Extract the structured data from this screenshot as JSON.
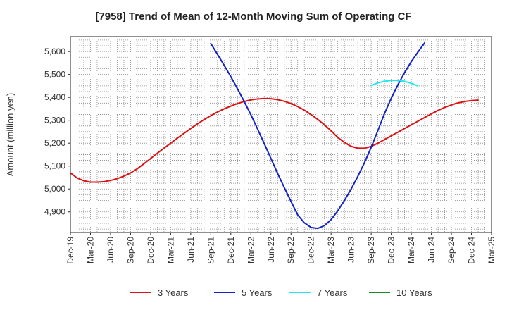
{
  "chart_data": {
    "type": "line",
    "title": "[7958]  Trend of Mean of 12-Month Moving Sum of Operating CF",
    "xlabel": "",
    "ylabel": "Amount (million yen)",
    "ylim": [
      4810,
      5665
    ],
    "yticks": [
      4900,
      5000,
      5100,
      5200,
      5300,
      5400,
      5500,
      5600
    ],
    "ytick_labels": [
      "4,900",
      "5,000",
      "5,100",
      "5,200",
      "5,300",
      "5,400",
      "5,500",
      "5,600"
    ],
    "x_start": "Dec-19",
    "x_months": 63,
    "xtick_labels": [
      "Dec-19",
      "Mar-20",
      "Jun-20",
      "Sep-20",
      "Dec-20",
      "Mar-21",
      "Jun-21",
      "Sep-21",
      "Dec-21",
      "Mar-22",
      "Jun-22",
      "Sep-22",
      "Dec-22",
      "Mar-23",
      "Jun-23",
      "Sep-23",
      "Dec-23",
      "Mar-24",
      "Jun-24",
      "Sep-24",
      "Dec-24",
      "Mar-25"
    ],
    "grid": true,
    "legend_position": "bottom",
    "series": [
      {
        "name": "3 Years",
        "color": "#dd1111",
        "points": [
          [
            0,
            5070
          ],
          [
            1,
            5048
          ],
          [
            2,
            5036
          ],
          [
            3,
            5030
          ],
          [
            4,
            5030
          ],
          [
            5,
            5032
          ],
          [
            6,
            5037
          ],
          [
            7,
            5045
          ],
          [
            8,
            5056
          ],
          [
            9,
            5070
          ],
          [
            10,
            5088
          ],
          [
            11,
            5110
          ],
          [
            12,
            5133
          ],
          [
            13,
            5156
          ],
          [
            14,
            5178
          ],
          [
            15,
            5200
          ],
          [
            16,
            5222
          ],
          [
            17,
            5243
          ],
          [
            18,
            5264
          ],
          [
            19,
            5284
          ],
          [
            20,
            5303
          ],
          [
            21,
            5320
          ],
          [
            22,
            5336
          ],
          [
            23,
            5350
          ],
          [
            24,
            5362
          ],
          [
            25,
            5373
          ],
          [
            26,
            5382
          ],
          [
            27,
            5389
          ],
          [
            28,
            5393
          ],
          [
            29,
            5395
          ],
          [
            30,
            5394
          ],
          [
            31,
            5390
          ],
          [
            32,
            5383
          ],
          [
            33,
            5373
          ],
          [
            34,
            5360
          ],
          [
            35,
            5344
          ],
          [
            36,
            5325
          ],
          [
            37,
            5304
          ],
          [
            38,
            5280
          ],
          [
            39,
            5254
          ],
          [
            40,
            5225
          ],
          [
            41,
            5203
          ],
          [
            42,
            5186
          ],
          [
            43,
            5178
          ],
          [
            44,
            5178
          ],
          [
            45,
            5186
          ],
          [
            46,
            5200
          ],
          [
            47,
            5216
          ],
          [
            48,
            5232
          ],
          [
            49,
            5248
          ],
          [
            50,
            5264
          ],
          [
            51,
            5280
          ],
          [
            52,
            5296
          ],
          [
            53,
            5312
          ],
          [
            54,
            5328
          ],
          [
            55,
            5343
          ],
          [
            56,
            5356
          ],
          [
            57,
            5367
          ],
          [
            58,
            5376
          ],
          [
            59,
            5382
          ],
          [
            60,
            5386
          ],
          [
            61,
            5388
          ]
        ]
      },
      {
        "name": "5 Years",
        "color": "#1122cc",
        "points": [
          [
            21,
            5635
          ],
          [
            22,
            5588
          ],
          [
            23,
            5540
          ],
          [
            24,
            5490
          ],
          [
            25,
            5437
          ],
          [
            26,
            5382
          ],
          [
            27,
            5324
          ],
          [
            28,
            5262
          ],
          [
            29,
            5198
          ],
          [
            30,
            5133
          ],
          [
            31,
            5068
          ],
          [
            32,
            5006
          ],
          [
            33,
            4946
          ],
          [
            34,
            4887
          ],
          [
            35,
            4852
          ],
          [
            36,
            4832
          ],
          [
            37,
            4828
          ],
          [
            38,
            4840
          ],
          [
            39,
            4866
          ],
          [
            40,
            4905
          ],
          [
            41,
            4950
          ],
          [
            42,
            5000
          ],
          [
            43,
            5055
          ],
          [
            44,
            5115
          ],
          [
            45,
            5182
          ],
          [
            46,
            5255
          ],
          [
            47,
            5330
          ],
          [
            48,
            5396
          ],
          [
            49,
            5455
          ],
          [
            50,
            5508
          ],
          [
            51,
            5556
          ],
          [
            52,
            5598
          ],
          [
            53,
            5638
          ]
        ]
      },
      {
        "name": "7 Years",
        "color": "#22e5ee",
        "points": [
          [
            45,
            5452
          ],
          [
            46,
            5463
          ],
          [
            47,
            5470
          ],
          [
            48,
            5474
          ],
          [
            49,
            5474
          ],
          [
            50,
            5470
          ],
          [
            51,
            5461
          ],
          [
            52,
            5450
          ]
        ]
      },
      {
        "name": "10 Years",
        "color": "#228822",
        "points": []
      }
    ]
  }
}
